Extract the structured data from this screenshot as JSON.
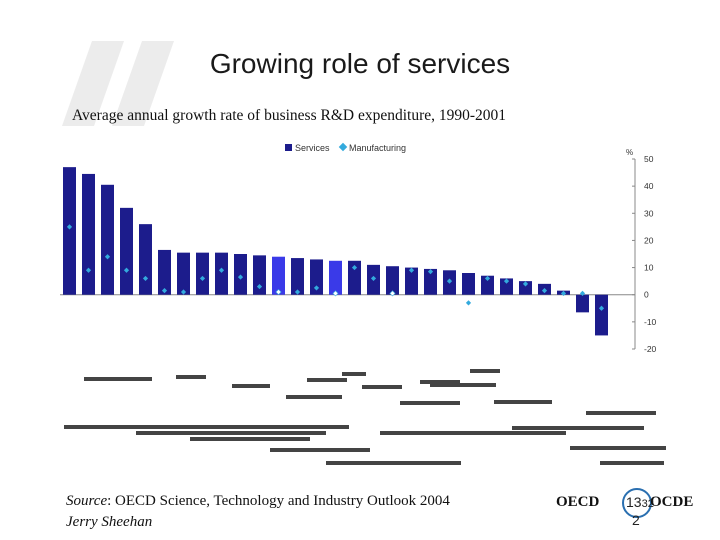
{
  "slide": {
    "title": "Growing role of services",
    "subtitle": "Average annual growth rate of business R&D expenditure, 1990-2001",
    "source_label": "Source",
    "source_text": ": OECD Science, Technology and Industry Outlook 2004",
    "author": "Jerry Sheehan",
    "logo_left": "OECD",
    "logo_right": "OCDE",
    "page_number": "13",
    "page_number_overlap": "32",
    "page_number_line2": "2"
  },
  "colors": {
    "services": "#1c1c8c",
    "services_highlight": "#3a3ae8",
    "manufacturing": "#33aadd",
    "manufacturing_highlight": "#ffffff",
    "quote_mark": "#ececec"
  },
  "chart_data": {
    "type": "bar",
    "title": "",
    "y_unit_label": "%",
    "ylim": [
      -20,
      50
    ],
    "yticks": [
      50,
      40,
      30,
      20,
      10,
      0,
      -10,
      -20
    ],
    "legend": [
      "Services",
      "Manufacturing"
    ],
    "legend_position": "top-center",
    "series": [
      {
        "name": "Services",
        "values": [
          47,
          44.5,
          40.5,
          32,
          26,
          16.5,
          15.5,
          15.5,
          15.5,
          15,
          14.5,
          14,
          13.5,
          13,
          12.5,
          12.5,
          11,
          10.5,
          10,
          9.5,
          9,
          8,
          7,
          6,
          5,
          4,
          1.5,
          -6.5,
          -15
        ]
      },
      {
        "name": "Manufacturing",
        "values": [
          25,
          9,
          14,
          9,
          6,
          1.5,
          1,
          6,
          9,
          6.5,
          3,
          1,
          1,
          2.5,
          0.5,
          10,
          6,
          0.5,
          9,
          8.5,
          5,
          -3,
          6,
          5,
          4,
          1.5,
          0.5,
          0.5,
          -5
        ]
      }
    ],
    "highlighted_services_indices": [
      11,
      14
    ],
    "highlighted_manufacturing_indices": [
      11,
      14,
      17
    ],
    "tick_labels_note": "Country labels below the axis are rendered garbled/illegible in the original image"
  }
}
